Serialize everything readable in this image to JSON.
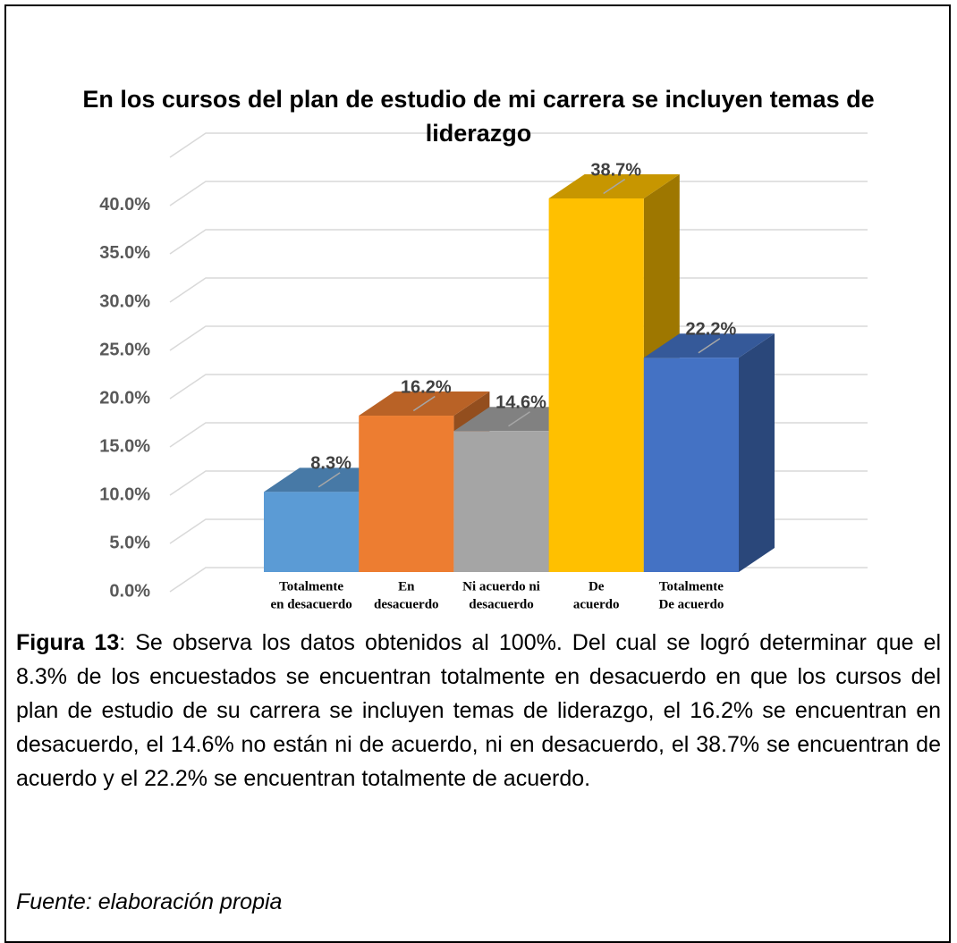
{
  "chart_data": {
    "type": "bar3d",
    "title": "En los cursos del plan de estudio de mi carrera se incluyen temas de liderazgo",
    "categories": [
      [
        "Totalmente",
        "en desacuerdo"
      ],
      [
        "En",
        "desacuerdo"
      ],
      [
        "Ni acuerdo ni",
        "desacuerdo"
      ],
      [
        "De",
        "acuerdo"
      ],
      [
        "Totalmente",
        "De acuerdo"
      ]
    ],
    "values": [
      8.3,
      16.2,
      14.6,
      38.7,
      22.2
    ],
    "value_labels": [
      "8.3%",
      "16.2%",
      "14.6%",
      "38.7%",
      "22.2%"
    ],
    "colors": [
      "#5b9bd5",
      "#ed7d31",
      "#a5a5a5",
      "#ffc000",
      "#4472c4"
    ],
    "ylim": [
      0,
      45
    ],
    "yticks": [
      {
        "value": 0,
        "label": "0.0%"
      },
      {
        "value": 5,
        "label": "5.0%"
      },
      {
        "value": 10,
        "label": "10.0%"
      },
      {
        "value": 15,
        "label": "15.0%"
      },
      {
        "value": 20,
        "label": "20.0%"
      },
      {
        "value": 25,
        "label": "25.0%"
      },
      {
        "value": 30,
        "label": "30.0%"
      },
      {
        "value": 35,
        "label": "35.0%"
      },
      {
        "value": 40,
        "label": "40.0%"
      }
    ],
    "grid": true
  },
  "caption": {
    "label": "Figura 13",
    "text": ": Se observa los datos obtenidos al 100%. Del cual se logró determinar que el 8.3% de los encuestados se encuentran totalmente en desacuerdo en que los cursos del plan de estudio de su carrera se incluyen temas de liderazgo, el 16.2% se encuentran en desacuerdo, el 14.6% no están ni de acuerdo, ni en desacuerdo, el 38.7% se encuentran de acuerdo y el 22.2% se encuentran totalmente de acuerdo."
  },
  "source": "Fuente: elaboración propia"
}
